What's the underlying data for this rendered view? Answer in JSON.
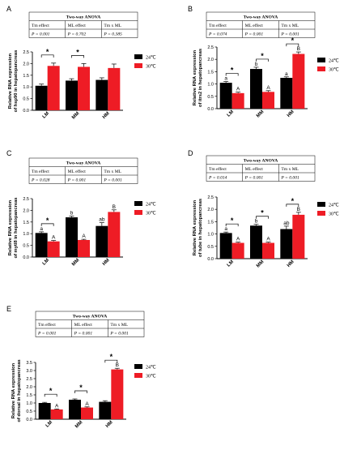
{
  "legend": {
    "temp1": "24℃",
    "temp2": "30℃",
    "color1": "#000000",
    "color2": "#ee1c25"
  },
  "chart_data": [
    {
      "panel": "A",
      "type": "bar",
      "ylabel": "Relative RNA expression of hsp90 in hepatopancreas",
      "ylim": [
        0.0,
        2.5
      ],
      "yticks": [
        0.0,
        0.5,
        1.0,
        1.5,
        2.0,
        2.5
      ],
      "categories": [
        "LM",
        "MM",
        "HM"
      ],
      "series": [
        {
          "name": "24℃",
          "values": [
            1.05,
            1.27,
            1.3
          ],
          "errors": [
            0.07,
            0.08,
            0.09
          ]
        },
        {
          "name": "30℃",
          "values": [
            1.9,
            1.86,
            1.81
          ],
          "errors": [
            0.12,
            0.14,
            0.17
          ]
        }
      ],
      "letters": [
        [
          "",
          ""
        ],
        [
          "",
          ""
        ],
        [
          "",
          ""
        ]
      ],
      "significance": [
        "*",
        "*",
        ""
      ],
      "anova": {
        "title": "Two-way ANOVA",
        "headers": [
          "Tm effect",
          "ML effect",
          "Tm x ML"
        ],
        "values": [
          "P = 0.001",
          "P = 0.702",
          "P = 0.385"
        ]
      }
    },
    {
      "panel": "B",
      "type": "bar",
      "ylabel": "Relative RNA expression of itrs2 in hepatopancreas",
      "ylim": [
        0.0,
        2.5
      ],
      "yticks": [
        0.0,
        0.5,
        1.0,
        1.5,
        2.0,
        2.5
      ],
      "categories": [
        "LM",
        "MM",
        "HM"
      ],
      "series": [
        {
          "name": "24℃",
          "values": [
            1.05,
            1.61,
            1.25
          ],
          "errors": [
            0.05,
            0.07,
            0.04
          ]
        },
        {
          "name": "30℃",
          "values": [
            0.63,
            0.68,
            2.22
          ],
          "errors": [
            0.04,
            0.05,
            0.08
          ]
        }
      ],
      "letters": [
        [
          "a",
          "A"
        ],
        [
          "b",
          "A"
        ],
        [
          "a",
          "B"
        ]
      ],
      "significance": [
        "*",
        "*",
        "*"
      ],
      "anova": {
        "title": "Two-way ANOVA",
        "headers": [
          "Tm effect",
          "ML effect",
          "Tm x ML"
        ],
        "values": [
          "P = 0.074",
          "P = 0.001",
          "P = 0.001"
        ]
      }
    },
    {
      "panel": "C",
      "type": "bar",
      "ylabel": "Relative RNA expression of mytl8 in hepatopancreas",
      "ylim": [
        0.0,
        2.5
      ],
      "yticks": [
        0.0,
        0.5,
        1.0,
        1.5,
        2.0,
        2.5
      ],
      "categories": [
        "LM",
        "MM",
        "HM"
      ],
      "series": [
        {
          "name": "24℃",
          "values": [
            1.03,
            1.7,
            1.33
          ],
          "errors": [
            0.05,
            0.05,
            0.14
          ]
        },
        {
          "name": "30℃",
          "values": [
            0.67,
            0.73,
            1.93
          ],
          "errors": [
            0.04,
            0.03,
            0.09
          ]
        }
      ],
      "letters": [
        [
          "a",
          "A"
        ],
        [
          "b",
          "A"
        ],
        [
          "ab",
          "B"
        ]
      ],
      "significance": [
        "*",
        "",
        ""
      ],
      "anova": {
        "title": "Two-way ANOVA",
        "headers": [
          "Tm effect",
          "ML effect",
          "Tm x ML"
        ],
        "values": [
          "P = 0.028",
          "P = 0.001",
          "P = 0.001"
        ]
      }
    },
    {
      "panel": "D",
      "type": "bar",
      "ylabel": "Relative RNA expression of tube in hepatopancreas",
      "ylim": [
        0.0,
        2.5
      ],
      "yticks": [
        0.0,
        0.5,
        1.0,
        1.5,
        2.0,
        2.5
      ],
      "categories": [
        "LM",
        "MM",
        "HM"
      ],
      "series": [
        {
          "name": "24℃",
          "values": [
            1.04,
            1.34,
            1.2
          ],
          "errors": [
            0.04,
            0.05,
            0.12
          ]
        },
        {
          "name": "30℃",
          "values": [
            0.64,
            0.64,
            1.78
          ],
          "errors": [
            0.03,
            0.03,
            0.1
          ]
        }
      ],
      "letters": [
        [
          "a",
          "A"
        ],
        [
          "b",
          "A"
        ],
        [
          "ab",
          "B"
        ]
      ],
      "significance": [
        "*",
        "*",
        "*"
      ],
      "anova": {
        "title": "Two-way ANOVA",
        "headers": [
          "Tm effect",
          "ML effect",
          "Tm x ML"
        ],
        "values": [
          "P = 0.014",
          "P = 0.001",
          "P = 0.001"
        ]
      }
    },
    {
      "panel": "E",
      "type": "bar",
      "ylabel": "Relative RNA expression of dorsal in hepatopancreas",
      "ylim": [
        0.0,
        3.5
      ],
      "yticks": [
        0.0,
        0.5,
        1.0,
        1.5,
        2.0,
        2.5,
        3.0,
        3.5
      ],
      "categories": [
        "LM",
        "MM",
        "HM"
      ],
      "series": [
        {
          "name": "24℃",
          "values": [
            1.0,
            1.2,
            1.07
          ],
          "errors": [
            0.04,
            0.05,
            0.07
          ]
        },
        {
          "name": "30℃",
          "values": [
            0.6,
            0.72,
            3.07
          ],
          "errors": [
            0.03,
            0.04,
            0.07
          ]
        }
      ],
      "letters": [
        [
          "",
          "A"
        ],
        [
          "",
          "A"
        ],
        [
          "",
          "B"
        ]
      ],
      "significance": [
        "*",
        "*",
        "*"
      ],
      "anova": {
        "title": "Two-way ANOVA",
        "headers": [
          "Tm effect",
          "ML effect",
          "Tm x ML"
        ],
        "values": [
          "P = 0.001",
          "P = 0.001",
          "P = 0.001"
        ]
      }
    }
  ]
}
